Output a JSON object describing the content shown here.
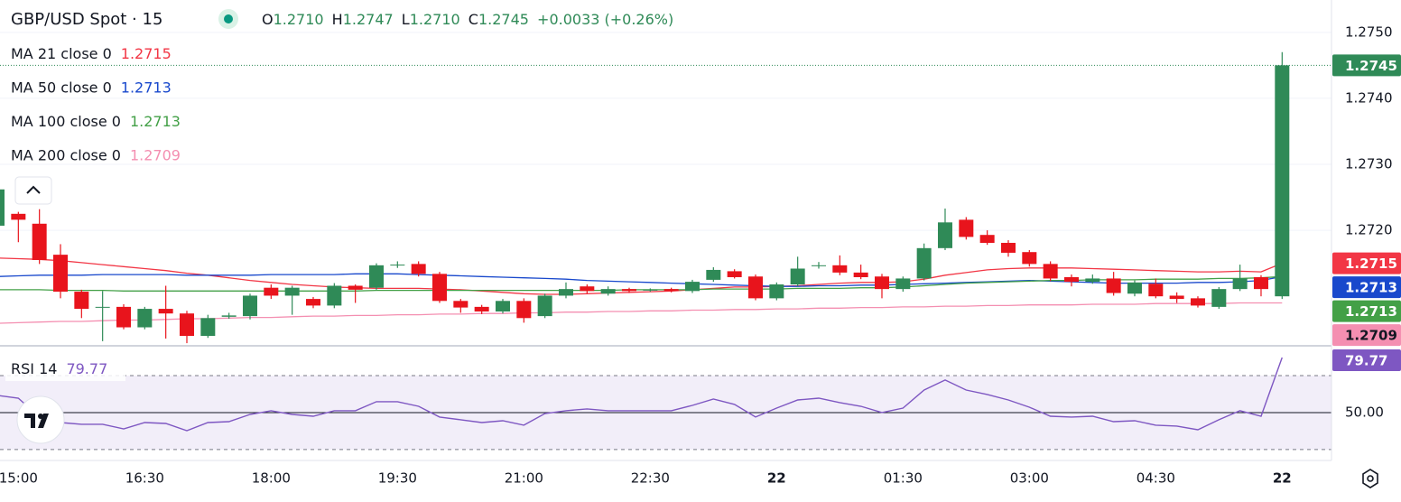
{
  "header": {
    "symbol": "GBP/USD Spot · 15",
    "ohlc": [
      {
        "key": "O",
        "value": "1.2710"
      },
      {
        "key": "H",
        "value": "1.2747"
      },
      {
        "key": "L",
        "value": "1.2710"
      },
      {
        "key": "C",
        "value": "1.2745"
      }
    ],
    "change": "+0.0033 (+0.26%)"
  },
  "chart_data": [
    {
      "type": "candlestick",
      "categories": [
        null,
        "15:00",
        null,
        null,
        null,
        null,
        null,
        "16:30",
        null,
        null,
        null,
        null,
        null,
        "18:00",
        null,
        null,
        null,
        null,
        null,
        "19:30",
        null,
        null,
        null,
        null,
        null,
        "21:00",
        null,
        null,
        null,
        null,
        null,
        "22:30",
        null,
        null,
        null,
        null,
        null,
        "22",
        null,
        null,
        null,
        null,
        null,
        "01:30",
        null,
        null,
        null,
        null,
        null,
        "03:00",
        null,
        null,
        null,
        null,
        null,
        "04:30",
        null,
        null,
        null,
        null,
        null,
        "22"
      ],
      "up_color": "#2f8a57",
      "down_color": "#e8141c",
      "open": [
        1.27207,
        1.27225,
        1.2721,
        1.27163,
        1.27107,
        1.27083,
        1.27084,
        1.27053,
        1.27081,
        1.27074,
        1.2704,
        1.27069,
        1.2707,
        1.27113,
        1.27101,
        1.27096,
        1.27086,
        1.27116,
        1.27113,
        1.27147,
        1.27149,
        1.27134,
        1.27093,
        1.27084,
        1.27077,
        1.27093,
        1.2707,
        1.27101,
        1.27115,
        1.27104,
        1.27111,
        1.2711,
        1.27111,
        1.27108,
        1.27125,
        1.27138,
        1.2713,
        1.27097,
        1.27118,
        1.27146,
        1.27147,
        1.27136,
        1.2713,
        1.27111,
        1.27127,
        1.27173,
        1.27216,
        1.27193,
        1.27181,
        1.27167,
        1.27149,
        1.27129,
        1.27122,
        1.27127,
        1.27104,
        1.27119,
        1.27101,
        1.27097,
        1.27084,
        1.27111,
        1.27129,
        1.271
      ],
      "high": [
        1.27275,
        1.27228,
        1.27232,
        1.27179,
        1.2711,
        1.27108,
        1.27088,
        1.27084,
        1.27116,
        1.27078,
        1.27072,
        1.27075,
        1.27104,
        1.27118,
        1.27116,
        1.27099,
        1.2712,
        1.27118,
        1.2715,
        1.27153,
        1.27153,
        1.27137,
        1.27096,
        1.27087,
        1.27096,
        1.27097,
        1.27104,
        1.27121,
        1.27118,
        1.27115,
        1.27113,
        1.27112,
        1.27113,
        1.27125,
        1.27144,
        1.27141,
        1.27133,
        1.27121,
        1.2716,
        1.27152,
        1.27162,
        1.27148,
        1.27134,
        1.2713,
        1.2718,
        1.27233,
        1.2722,
        1.272,
        1.27185,
        1.2717,
        1.27153,
        1.27133,
        1.27133,
        1.27137,
        1.27124,
        1.27127,
        1.27106,
        1.271,
        1.27114,
        1.27148,
        1.27132,
        1.2747
      ],
      "low": [
        1.272,
        1.27182,
        1.27149,
        1.27097,
        1.27067,
        1.27032,
        1.2705,
        1.2705,
        1.27036,
        1.27029,
        1.27037,
        1.27066,
        1.27065,
        1.27096,
        1.27072,
        1.27082,
        1.27082,
        1.2709,
        1.2711,
        1.27143,
        1.2713,
        1.2709,
        1.27075,
        1.27073,
        1.27074,
        1.2706,
        1.27067,
        1.27097,
        1.27104,
        1.27101,
        1.27105,
        1.27107,
        1.27106,
        1.27105,
        1.27122,
        1.27127,
        1.27094,
        1.27094,
        1.27115,
        1.27142,
        1.27132,
        1.27126,
        1.27097,
        1.27107,
        1.27124,
        1.2717,
        1.27186,
        1.27178,
        1.2716,
        1.27145,
        1.27123,
        1.27115,
        1.27119,
        1.27101,
        1.271,
        1.27097,
        1.2709,
        1.27083,
        1.27081,
        1.27108,
        1.271,
        1.27096
      ],
      "close": [
        1.27262,
        1.27216,
        1.27155,
        1.27107,
        1.27081,
        1.27084,
        1.27053,
        1.27081,
        1.27074,
        1.2704,
        1.27067,
        1.27071,
        1.27101,
        1.27101,
        1.27113,
        1.27086,
        1.27116,
        1.2711,
        1.27147,
        1.27148,
        1.27134,
        1.27093,
        1.27083,
        1.27077,
        1.27093,
        1.27067,
        1.27101,
        1.27111,
        1.27108,
        1.27111,
        1.27108,
        1.2711,
        1.27108,
        1.27122,
        1.2714,
        1.27129,
        1.27097,
        1.27118,
        1.27142,
        1.27147,
        1.27136,
        1.27129,
        1.27111,
        1.27127,
        1.27173,
        1.27212,
        1.2719,
        1.27181,
        1.27166,
        1.27149,
        1.27127,
        1.27122,
        1.27127,
        1.27105,
        1.27121,
        1.271,
        1.27096,
        1.27086,
        1.27111,
        1.27127,
        1.27111,
        1.2745
      ],
      "series": [
        {
          "name": "MA 21 close 0",
          "color": "#f23645",
          "last_label": "1.2715",
          "values": [
            1.27158,
            1.27157,
            1.27156,
            1.27154,
            1.27151,
            1.27148,
            1.27145,
            1.27142,
            1.27139,
            1.27135,
            1.27132,
            1.27128,
            1.27124,
            1.27121,
            1.27118,
            1.27116,
            1.27114,
            1.27113,
            1.27112,
            1.27112,
            1.27112,
            1.27111,
            1.2711,
            1.27108,
            1.27106,
            1.27104,
            1.27103,
            1.27103,
            1.27104,
            1.27105,
            1.27106,
            1.27107,
            1.27108,
            1.2711,
            1.27112,
            1.27114,
            1.27114,
            1.27115,
            1.27116,
            1.27118,
            1.2712,
            1.27121,
            1.27121,
            1.27122,
            1.27126,
            1.27132,
            1.27136,
            1.2714,
            1.27142,
            1.27143,
            1.27143,
            1.27143,
            1.27142,
            1.27141,
            1.2714,
            1.27139,
            1.27138,
            1.27137,
            1.27137,
            1.27138,
            1.27137,
            1.2715
          ]
        },
        {
          "name": "MA 50 close 0",
          "color": "#1848cc",
          "last_label": "1.2713",
          "values": [
            1.2713,
            1.27131,
            1.27132,
            1.27132,
            1.27132,
            1.27133,
            1.27133,
            1.27133,
            1.27133,
            1.27132,
            1.27132,
            1.27132,
            1.27132,
            1.27133,
            1.27133,
            1.27133,
            1.27133,
            1.27134,
            1.27134,
            1.27134,
            1.27133,
            1.27132,
            1.27131,
            1.2713,
            1.27129,
            1.27128,
            1.27127,
            1.27126,
            1.27124,
            1.27123,
            1.27122,
            1.27121,
            1.2712,
            1.27119,
            1.27118,
            1.27117,
            1.27116,
            1.27115,
            1.27115,
            1.27116,
            1.27116,
            1.27117,
            1.27117,
            1.27118,
            1.27119,
            1.2712,
            1.27121,
            1.27122,
            1.27123,
            1.27124,
            1.27123,
            1.27122,
            1.27121,
            1.2712,
            1.2712,
            1.2712,
            1.2712,
            1.27121,
            1.27121,
            1.27122,
            1.27124,
            1.2713
          ]
        },
        {
          "name": "MA 100 close 0",
          "color": "#43a047",
          "last_label": "1.2713",
          "values": [
            1.2711,
            1.2711,
            1.2711,
            1.27109,
            1.27109,
            1.27109,
            1.27108,
            1.27108,
            1.27108,
            1.27108,
            1.27108,
            1.27108,
            1.27108,
            1.27108,
            1.27108,
            1.27108,
            1.27108,
            1.27108,
            1.27109,
            1.27109,
            1.27109,
            1.27109,
            1.27109,
            1.27109,
            1.27109,
            1.27109,
            1.27109,
            1.27109,
            1.27109,
            1.27109,
            1.2711,
            1.2711,
            1.2711,
            1.2711,
            1.27111,
            1.27111,
            1.27111,
            1.27111,
            1.27112,
            1.27112,
            1.27112,
            1.27113,
            1.27113,
            1.27114,
            1.27116,
            1.27118,
            1.2712,
            1.27121,
            1.27122,
            1.27123,
            1.27124,
            1.27124,
            1.27125,
            1.27125,
            1.27125,
            1.27126,
            1.27126,
            1.27126,
            1.27127,
            1.27127,
            1.27128,
            1.2713
          ]
        },
        {
          "name": "MA 200 close 0",
          "color": "#f48fb1",
          "last_label": "1.2709",
          "values": [
            1.27059,
            1.2706,
            1.27061,
            1.27062,
            1.27062,
            1.27063,
            1.27064,
            1.27064,
            1.27065,
            1.27066,
            1.27066,
            1.27067,
            1.27068,
            1.27068,
            1.27069,
            1.2707,
            1.2707,
            1.27071,
            1.27071,
            1.27072,
            1.27072,
            1.27073,
            1.27073,
            1.27074,
            1.27074,
            1.27075,
            1.27075,
            1.27076,
            1.27076,
            1.27077,
            1.27077,
            1.27078,
            1.27078,
            1.27079,
            1.27079,
            1.2708,
            1.2708,
            1.27081,
            1.27081,
            1.27082,
            1.27082,
            1.27083,
            1.27083,
            1.27084,
            1.27084,
            1.27085,
            1.27085,
            1.27086,
            1.27086,
            1.27087,
            1.27087,
            1.27087,
            1.27088,
            1.27088,
            1.27088,
            1.27089,
            1.27089,
            1.27089,
            1.27089,
            1.2709,
            1.2709,
            1.2709
          ]
        }
      ],
      "ylim": [
        1.27025,
        1.27549
      ],
      "yticks": [
        {
          "value": 1.275,
          "label": "1.2750"
        },
        {
          "value": 1.274,
          "label": "1.2740"
        },
        {
          "value": 1.273,
          "label": "1.2730"
        },
        {
          "value": 1.272,
          "label": "1.2720"
        }
      ]
    },
    {
      "type": "line",
      "name": "RSI 14",
      "color": "#7e57c2",
      "last_label": "79.77",
      "values": [
        59.3,
        57.8,
        47.6,
        44.6,
        43.7,
        43.7,
        41.2,
        44.6,
        44.1,
        40.2,
        44.6,
        45.1,
        49.0,
        51.0,
        49.0,
        48.0,
        51.0,
        51.0,
        55.9,
        55.9,
        53.4,
        47.6,
        46.1,
        44.6,
        45.6,
        43.2,
        49.5,
        51.0,
        52.0,
        51.0,
        51.0,
        51.0,
        51.0,
        53.9,
        57.3,
        54.4,
        47.6,
        52.4,
        56.8,
        57.8,
        55.4,
        53.4,
        50.0,
        52.4,
        62.2,
        67.6,
        62.2,
        59.8,
        56.8,
        52.9,
        48.0,
        47.6,
        48.0,
        45.1,
        45.6,
        43.2,
        42.7,
        40.7,
        46.1,
        51.0,
        48.0,
        79.77
      ],
      "levels": [
        70,
        50,
        30
      ],
      "ylim": [
        24.1,
        86.1
      ],
      "yticks": [
        {
          "value": 50,
          "label": "50.00"
        }
      ]
    }
  ]
}
